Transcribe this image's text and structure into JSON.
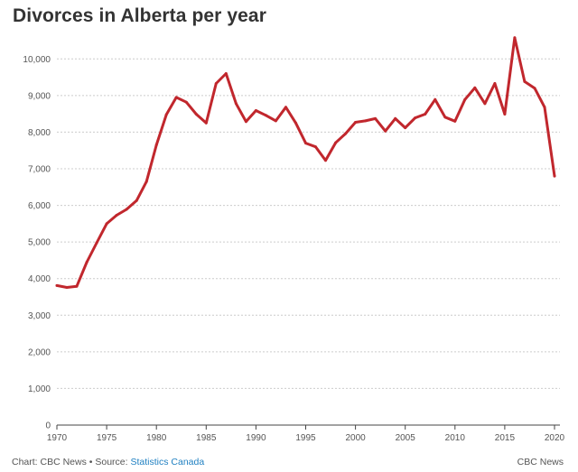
{
  "title": "Divorces in Alberta per year",
  "footer": {
    "chart_by": "Chart: CBC News",
    "separator": " • ",
    "source_prefix": "Source: ",
    "source_name": "Statistics Canada",
    "brand": "CBC News"
  },
  "colors": {
    "line": "#c1272d",
    "grid": "#cccccc",
    "axis": "#444444",
    "tick_text": "#555555",
    "link": "#1e7fc1"
  },
  "chart_data": {
    "type": "line",
    "title": "Divorces in Alberta per year",
    "xlabel": "",
    "ylabel": "",
    "xlim": [
      1970,
      2020
    ],
    "ylim": [
      0,
      10500
    ],
    "x_ticks": [
      1970,
      1975,
      1980,
      1985,
      1990,
      1995,
      2000,
      2005,
      2010,
      2015,
      2020
    ],
    "x_tick_labels": [
      "1970",
      "1975",
      "1980",
      "1985",
      "1990",
      "1995",
      "2000",
      "2005",
      "2010",
      "2015",
      "2020"
    ],
    "y_ticks": [
      0,
      1000,
      2000,
      3000,
      4000,
      5000,
      6000,
      7000,
      8000,
      9000,
      10000
    ],
    "y_tick_labels": [
      "0",
      "1,000",
      "2,000",
      "3,000",
      "4,000",
      "5,000",
      "6,000",
      "7,000",
      "8,000",
      "9,000",
      "10,000"
    ],
    "grid": "horizontal dotted",
    "legend": "none",
    "series": [
      {
        "x": [
          1970,
          1971,
          1972,
          1973,
          1974,
          1975,
          1976,
          1977,
          1978,
          1979,
          1980,
          1981,
          1982,
          1983,
          1984,
          1985,
          1986,
          1987,
          1988,
          1989,
          1990,
          1991,
          1992,
          1993,
          1994,
          1995,
          1996,
          1997,
          1998,
          1999,
          2000,
          2001,
          2002,
          2003,
          2004,
          2005,
          2006,
          2007,
          2008,
          2009,
          2010,
          2011,
          2012,
          2013,
          2014,
          2015,
          2016,
          2017,
          2018,
          2019,
          2020
        ],
        "values": [
          3810,
          3760,
          3790,
          4450,
          4980,
          5500,
          5730,
          5890,
          6130,
          6650,
          7650,
          8480,
          8950,
          8820,
          8490,
          8250,
          9330,
          9600,
          8780,
          8290,
          8590,
          8460,
          8310,
          8680,
          8250,
          7700,
          7600,
          7230,
          7710,
          7960,
          8270,
          8310,
          8370,
          8030,
          8370,
          8120,
          8390,
          8490,
          8890,
          8410,
          8300,
          8890,
          9210,
          8780,
          9330,
          8490,
          10580,
          9380,
          9200,
          8680,
          6800
        ]
      }
    ]
  }
}
